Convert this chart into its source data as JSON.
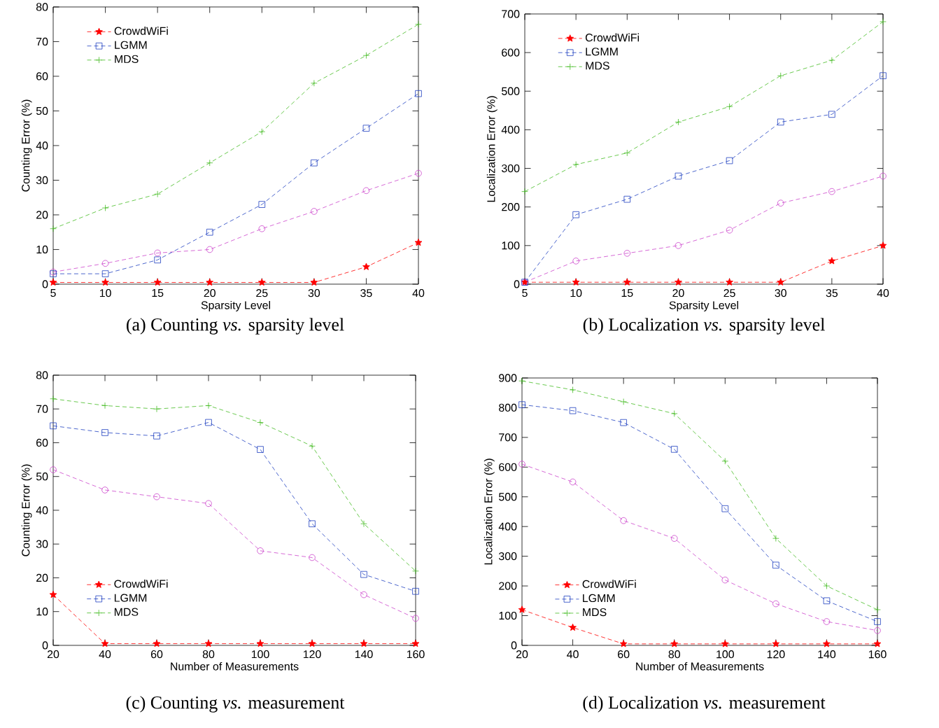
{
  "chart_data": [
    {
      "type": "line",
      "xlabel": "Sparsity Level",
      "ylabel": "Counting Error (%)",
      "annotations": [
        "(a) Counting *vs.* sparsity level"
      ],
      "x": [
        5,
        10,
        15,
        20,
        25,
        30,
        35,
        40
      ],
      "xlim": [
        5,
        40
      ],
      "xticks": [
        5,
        10,
        15,
        20,
        25,
        30,
        35,
        40
      ],
      "ylim": [
        0,
        80
      ],
      "yticks": [
        0,
        10,
        20,
        30,
        40,
        50,
        60,
        70,
        80
      ],
      "legend": "top left",
      "line_style": "dashed",
      "series": [
        {
          "name": "CrowdWiFi",
          "color": "#ff0000",
          "marker": "star",
          "values": [
            0.5,
            0.5,
            0.5,
            0.5,
            0.5,
            0.5,
            5,
            12
          ]
        },
        {
          "color": "#cc44cc",
          "marker": "circle",
          "values": [
            3.5,
            6,
            9,
            10,
            16,
            21,
            27,
            32
          ]
        },
        {
          "name": "LGMM",
          "color": "#2040c0",
          "marker": "square",
          "values": [
            3,
            3,
            7,
            15,
            23,
            35,
            45,
            55
          ]
        },
        {
          "name": "MDS",
          "color": "#44bb22",
          "marker": "cross",
          "values": [
            16,
            22,
            26,
            35,
            44,
            58,
            66,
            75
          ]
        }
      ]
    },
    {
      "type": "line",
      "xlabel": "Sparsity Level",
      "ylabel": "Localization Error (%)",
      "annotations": [
        "(b) Localization *vs.* sparsity level"
      ],
      "x": [
        5,
        10,
        15,
        20,
        25,
        30,
        35,
        40
      ],
      "xlim": [
        5,
        40
      ],
      "xticks": [
        5,
        10,
        15,
        20,
        25,
        30,
        35,
        40
      ],
      "ylim": [
        0,
        700
      ],
      "yticks": [
        0,
        100,
        200,
        300,
        400,
        500,
        600,
        700
      ],
      "legend": "top left",
      "line_style": "dashed",
      "series": [
        {
          "name": "CrowdWiFi",
          "color": "#ff0000",
          "marker": "star",
          "values": [
            5,
            5,
            5,
            5,
            5,
            5,
            60,
            100
          ]
        },
        {
          "color": "#cc44cc",
          "marker": "circle",
          "values": [
            5,
            60,
            80,
            100,
            140,
            210,
            240,
            280
          ]
        },
        {
          "name": "LGMM",
          "color": "#2040c0",
          "marker": "square",
          "values": [
            5,
            180,
            220,
            280,
            320,
            420,
            440,
            540
          ]
        },
        {
          "name": "MDS",
          "color": "#44bb22",
          "marker": "cross",
          "values": [
            240,
            310,
            340,
            420,
            460,
            540,
            580,
            680
          ]
        }
      ]
    },
    {
      "type": "line",
      "xlabel": "Number of Measurements",
      "ylabel": "Counting Error (%)",
      "annotations": [
        "(c) Counting *vs.* measurement"
      ],
      "x": [
        20,
        40,
        60,
        80,
        100,
        120,
        140,
        160
      ],
      "xlim": [
        20,
        160
      ],
      "xticks": [
        20,
        40,
        60,
        80,
        100,
        120,
        140,
        160
      ],
      "ylim": [
        0,
        80
      ],
      "yticks": [
        0,
        10,
        20,
        30,
        40,
        50,
        60,
        70,
        80
      ],
      "legend": "bottom left",
      "line_style": "dashed",
      "series": [
        {
          "name": "CrowdWiFi",
          "color": "#ff0000",
          "marker": "star",
          "values": [
            15,
            0.5,
            0.5,
            0.5,
            0.5,
            0.5,
            0.5,
            0.5
          ]
        },
        {
          "color": "#cc44cc",
          "marker": "circle",
          "values": [
            52,
            46,
            44,
            42,
            28,
            26,
            15,
            8
          ]
        },
        {
          "name": "LGMM",
          "color": "#2040c0",
          "marker": "square",
          "values": [
            65,
            63,
            62,
            66,
            58,
            36,
            21,
            16
          ]
        },
        {
          "name": "MDS",
          "color": "#44bb22",
          "marker": "cross",
          "values": [
            73,
            71,
            70,
            71,
            66,
            59,
            36,
            22
          ]
        }
      ]
    },
    {
      "type": "line",
      "xlabel": "Number of Measurements",
      "ylabel": "Localization Error (%)",
      "annotations": [
        "(d) Localization *vs.* measurement"
      ],
      "x": [
        20,
        40,
        60,
        80,
        100,
        120,
        140,
        160
      ],
      "xlim": [
        20,
        160
      ],
      "xticks": [
        20,
        40,
        60,
        80,
        100,
        120,
        140,
        160
      ],
      "ylim": [
        0,
        900
      ],
      "yticks": [
        0,
        100,
        200,
        300,
        400,
        500,
        600,
        700,
        800,
        900
      ],
      "legend": "bottom left",
      "line_style": "dashed",
      "series": [
        {
          "name": "CrowdWiFi",
          "color": "#ff0000",
          "marker": "star",
          "values": [
            120,
            60,
            5,
            5,
            5,
            5,
            5,
            5
          ]
        },
        {
          "color": "#cc44cc",
          "marker": "circle",
          "values": [
            610,
            550,
            420,
            360,
            220,
            140,
            80,
            50
          ]
        },
        {
          "name": "LGMM",
          "color": "#2040c0",
          "marker": "square",
          "values": [
            810,
            790,
            750,
            660,
            460,
            270,
            150,
            80
          ]
        },
        {
          "name": "MDS",
          "color": "#44bb22",
          "marker": "cross",
          "values": [
            890,
            860,
            820,
            780,
            620,
            360,
            200,
            120
          ]
        }
      ]
    }
  ]
}
